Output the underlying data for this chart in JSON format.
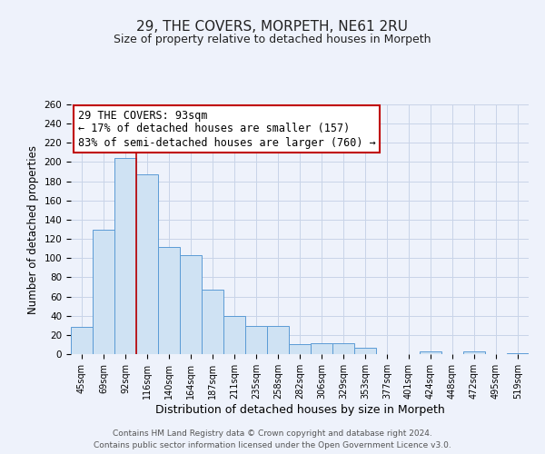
{
  "title": "29, THE COVERS, MORPETH, NE61 2RU",
  "subtitle": "Size of property relative to detached houses in Morpeth",
  "xlabel": "Distribution of detached houses by size in Morpeth",
  "ylabel": "Number of detached properties",
  "bar_labels": [
    "45sqm",
    "69sqm",
    "92sqm",
    "116sqm",
    "140sqm",
    "164sqm",
    "187sqm",
    "211sqm",
    "235sqm",
    "258sqm",
    "282sqm",
    "306sqm",
    "329sqm",
    "353sqm",
    "377sqm",
    "401sqm",
    "424sqm",
    "448sqm",
    "472sqm",
    "495sqm",
    "519sqm"
  ],
  "bar_values": [
    28,
    130,
    204,
    187,
    112,
    103,
    67,
    40,
    29,
    29,
    10,
    11,
    11,
    7,
    0,
    0,
    3,
    0,
    3,
    0,
    1
  ],
  "bar_color": "#cfe2f3",
  "bar_edge_color": "#5b9bd5",
  "vline_color": "#c00000",
  "vline_index": 2,
  "annotation_title": "29 THE COVERS: 93sqm",
  "annotation_line1": "← 17% of detached houses are smaller (157)",
  "annotation_line2": "83% of semi-detached houses are larger (760) →",
  "annotation_box_color": "#ffffff",
  "annotation_box_edge": "#c00000",
  "ylim": [
    0,
    260
  ],
  "yticks": [
    0,
    20,
    40,
    60,
    80,
    100,
    120,
    140,
    160,
    180,
    200,
    220,
    240,
    260
  ],
  "footer_line1": "Contains HM Land Registry data © Crown copyright and database right 2024.",
  "footer_line2": "Contains public sector information licensed under the Open Government Licence v3.0.",
  "bg_color": "#eef2fb",
  "grid_color": "#c8d4e8",
  "plot_bg": "#eef2fb"
}
